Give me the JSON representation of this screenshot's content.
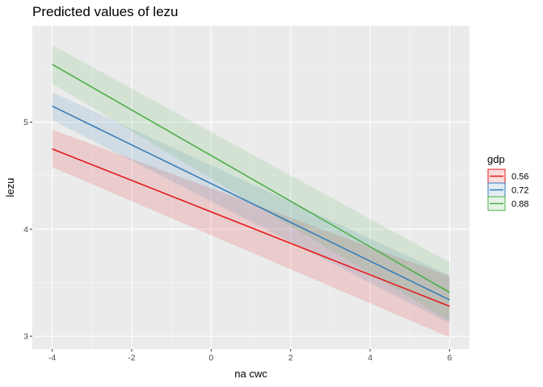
{
  "chart_data": {
    "type": "line",
    "title": "Predicted values of lezu",
    "xlabel": "na cwc",
    "ylabel": "lezu",
    "xlim": [
      -4.5,
      6.5
    ],
    "ylim": [
      2.88,
      5.9
    ],
    "x_ticks": [
      -4,
      -2,
      0,
      2,
      4,
      6
    ],
    "x_tick_labels": [
      "-4",
      "-2",
      "0",
      "2",
      "4",
      "6"
    ],
    "y_ticks": [
      3,
      4,
      5
    ],
    "y_tick_labels": [
      "3",
      "4",
      "5"
    ],
    "grid": true,
    "legend": {
      "title": "gdp",
      "position": "right"
    },
    "series": [
      {
        "name": "0.56",
        "color": "#e41a1c",
        "x": [
          -4,
          6
        ],
        "y": [
          4.75,
          3.28
        ],
        "lower": [
          4.58,
          2.99
        ],
        "upper": [
          4.93,
          3.56
        ]
      },
      {
        "name": "0.72",
        "color": "#377eb8",
        "x": [
          -4,
          6
        ],
        "y": [
          5.15,
          3.34
        ],
        "lower": [
          5.02,
          3.12
        ],
        "upper": [
          5.28,
          3.57
        ]
      },
      {
        "name": "0.88",
        "color": "#4daf4a",
        "x": [
          -4,
          6
        ],
        "y": [
          5.54,
          3.41
        ],
        "lower": [
          5.36,
          3.14
        ],
        "upper": [
          5.72,
          3.69
        ]
      }
    ]
  }
}
